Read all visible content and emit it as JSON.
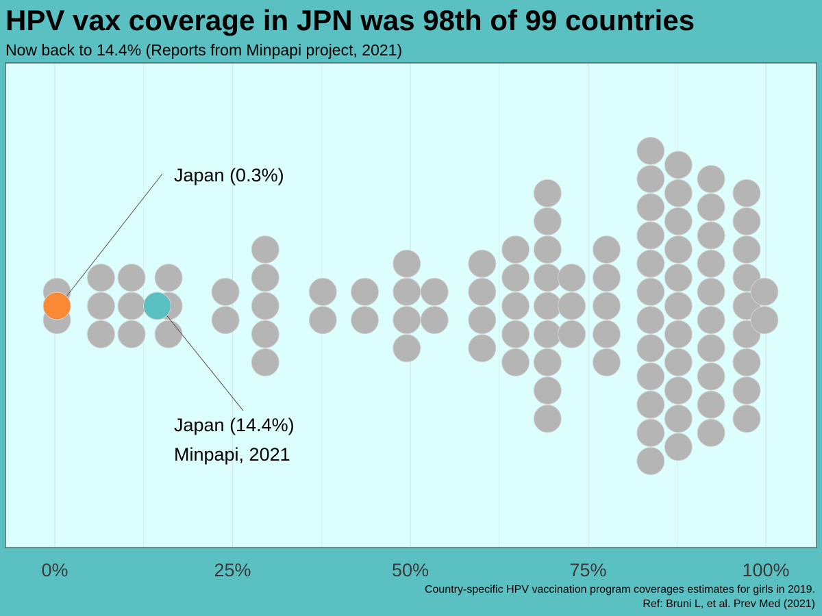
{
  "title": "HPV vax coverage in JPN was 98th of 99 countries",
  "subtitle": "Now back to 14.4% (Reports from Minpapi project, 2021)",
  "caption": {
    "line1": "Country-specific HPV vaccination program coverages estimates for girls in 2019.",
    "line2": "Ref: Bruni L, et al. Prev Med (2021)"
  },
  "colors": {
    "background": "#5bc0c1",
    "panel": "#dcfffd",
    "point": "#b5b5b5",
    "point_stroke": "#d2d2d2",
    "japan_2019": "#f98935",
    "japan_2021": "#5bc0c1",
    "grid": "#cfe3e3",
    "axis_text": "#3a3a3a"
  },
  "chart_data": {
    "type": "scatter",
    "subtype": "beeswarm dot plot",
    "x_axis": {
      "range": [
        0,
        100
      ],
      "ticks": [
        0,
        25,
        50,
        75,
        100
      ],
      "tick_labels": [
        "0%",
        "25%",
        "50%",
        "75%",
        "100%"
      ]
    },
    "y_axis": "none",
    "grid": "vertical major and minor lines",
    "columns": [
      {
        "x": 0.3,
        "count": 2
      },
      {
        "x": 6.5,
        "count": 3
      },
      {
        "x": 10.8,
        "count": 3
      },
      {
        "x": 16,
        "count": 3
      },
      {
        "x": 24,
        "count": 2
      },
      {
        "x": 29.6,
        "count": 5
      },
      {
        "x": 37.7,
        "count": 2
      },
      {
        "x": 43.6,
        "count": 2
      },
      {
        "x": 49.5,
        "count": 4
      },
      {
        "x": 53.4,
        "count": 2
      },
      {
        "x": 60.1,
        "count": 4
      },
      {
        "x": 64.8,
        "count": 5
      },
      {
        "x": 69.3,
        "count": 9
      },
      {
        "x": 72.7,
        "count": 3
      },
      {
        "x": 77.6,
        "count": 5
      },
      {
        "x": 83.8,
        "count": 12
      },
      {
        "x": 87.7,
        "count": 11
      },
      {
        "x": 92.3,
        "count": 10
      },
      {
        "x": 97.3,
        "count": 9
      },
      {
        "x": 99.8,
        "count": 2
      }
    ],
    "highlights": [
      {
        "label": "Japan (0.3%)",
        "x": 0.3,
        "note": ""
      },
      {
        "label": "Japan (14.4%)",
        "x": 14.4,
        "note": "Minpapi, 2021"
      }
    ]
  }
}
